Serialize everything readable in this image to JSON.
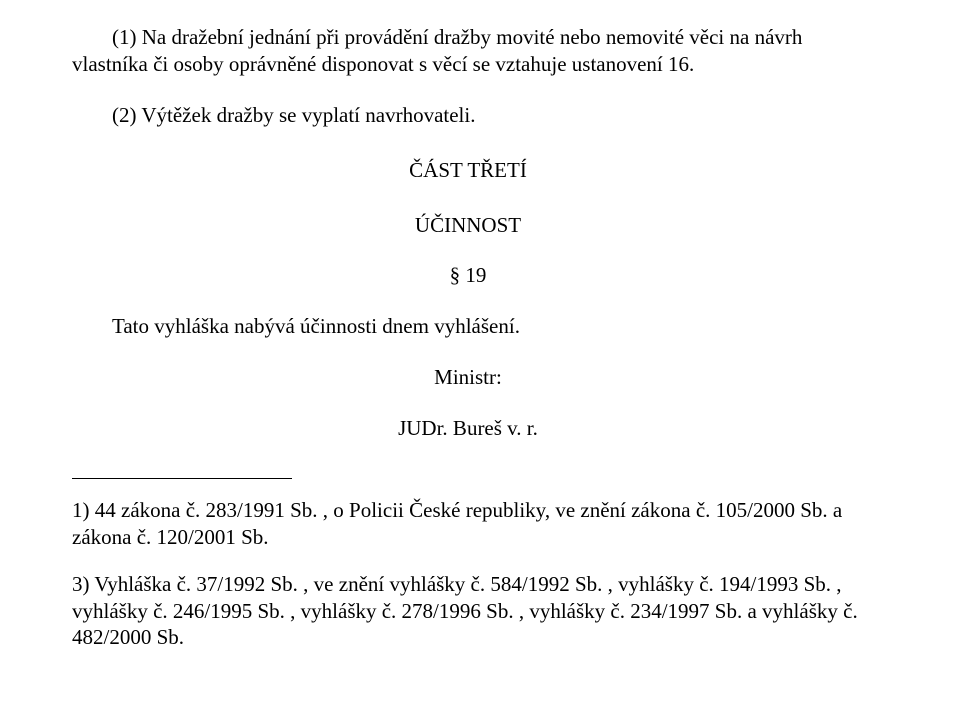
{
  "p1": "(1) Na dražební jednání při provádění dražby movité nebo nemovité věci na návrh vlastníka či osoby oprávněné disponovat s věcí se vztahuje ustanovení 16.",
  "p2": "(2) Výtěžek dražby se vyplatí navrhovateli.",
  "part_title": "ČÁST TŘETÍ",
  "part_sub": "ÚČINNOST",
  "section_number": "§ 19",
  "effect_line": "Tato vyhláška nabývá účinnosti dnem vyhlášení.",
  "minister_label": "Ministr:",
  "minister_name": "JUDr. Bureš v. r.",
  "footnote1": "1) 44 zákona č. 283/1991 Sb. , o Policii České republiky, ve znění zákona č. 105/2000 Sb. a zákona č. 120/2001 Sb.",
  "footnote2": "3) Vyhláška č. 37/1992 Sb. , ve znění vyhlášky č. 584/1992 Sb. , vyhlášky č. 194/1993 Sb. , vyhlášky č. 246/1995 Sb. , vyhlášky č. 278/1996 Sb. , vyhlášky č. 234/1997 Sb. a vyhlášky č. 482/2000 Sb."
}
